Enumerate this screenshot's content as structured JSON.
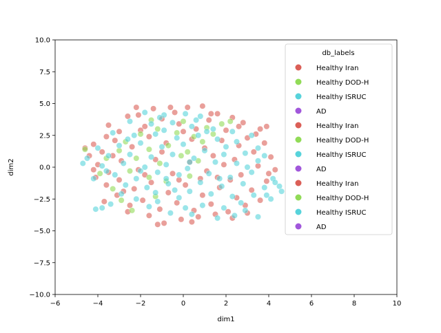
{
  "chart_data": {
    "type": "scatter",
    "title": "",
    "xlabel": "dim1",
    "ylabel": "dim2",
    "xlim": [
      -6,
      10
    ],
    "ylim": [
      -10,
      10
    ],
    "xticks": [
      "−6",
      "−4",
      "−2",
      "0",
      "2",
      "4",
      "6",
      "8",
      "10"
    ],
    "yticks": [
      "−10.0",
      "−7.5",
      "−5.0",
      "−2.5",
      "0.0",
      "2.5",
      "5.0",
      "7.5",
      "10.0"
    ],
    "grid": false,
    "legend": {
      "title": "db_labels",
      "placement": "top-right",
      "entries": [
        {
          "label": "Healthy Iran",
          "color": "#db5f57"
        },
        {
          "label": "Healthy DOD-H",
          "color": "#91db57"
        },
        {
          "label": "Healthy ISRUC",
          "color": "#57d3db"
        },
        {
          "label": "AD",
          "color": "#a157db"
        },
        {
          "label": "Healthy Iran",
          "color": "#db5f57"
        },
        {
          "label": "Healthy DOD-H",
          "color": "#91db57"
        },
        {
          "label": "Healthy ISRUC",
          "color": "#57d3db"
        },
        {
          "label": "AD",
          "color": "#a157db"
        },
        {
          "label": "Healthy Iran",
          "color": "#db5f57"
        },
        {
          "label": "Healthy DOD-H",
          "color": "#91db57"
        },
        {
          "label": "Healthy ISRUC",
          "color": "#57d3db"
        },
        {
          "label": "AD",
          "color": "#a157db"
        }
      ]
    },
    "series": [
      {
        "name": "Healthy Iran",
        "color": "#db5f57",
        "points": [
          [
            -2.2,
            4.7
          ],
          [
            -1.4,
            4.6
          ],
          [
            -0.6,
            4.7
          ],
          [
            0.2,
            4.7
          ],
          [
            0.9,
            4.8
          ],
          [
            1.6,
            4.2
          ],
          [
            2.3,
            3.9
          ],
          [
            -3.5,
            3.3
          ],
          [
            -3.0,
            2.8
          ],
          [
            -2.6,
            4.0
          ],
          [
            -1.8,
            3.2
          ],
          [
            -1.0,
            3.8
          ],
          [
            -0.2,
            3.4
          ],
          [
            0.6,
            3.0
          ],
          [
            1.2,
            3.7
          ],
          [
            2.0,
            2.9
          ],
          [
            2.8,
            3.5
          ],
          [
            3.4,
            2.6
          ],
          [
            3.9,
            3.2
          ],
          [
            -4.2,
            1.8
          ],
          [
            -3.8,
            1.2
          ],
          [
            -3.2,
            2.1
          ],
          [
            -2.4,
            1.6
          ],
          [
            -1.6,
            2.4
          ],
          [
            -0.8,
            1.9
          ],
          [
            0.4,
            2.2
          ],
          [
            1.0,
            1.5
          ],
          [
            1.8,
            2.1
          ],
          [
            2.6,
            1.7
          ],
          [
            3.3,
            1.2
          ],
          [
            3.8,
            1.9
          ],
          [
            4.1,
            0.8
          ],
          [
            -4.6,
            1.5
          ],
          [
            -4.0,
            0.2
          ],
          [
            -3.5,
            -0.4
          ],
          [
            -2.9,
            0.5
          ],
          [
            -2.1,
            -0.2
          ],
          [
            -1.3,
            0.6
          ],
          [
            -0.5,
            -0.5
          ],
          [
            0.3,
            0.4
          ],
          [
            1.1,
            -0.3
          ],
          [
            1.9,
            0.2
          ],
          [
            2.7,
            -0.6
          ],
          [
            3.5,
            0.1
          ],
          [
            4.3,
            -0.2
          ],
          [
            -4.1,
            -0.8
          ],
          [
            -3.6,
            -1.4
          ],
          [
            -3.0,
            -1.0
          ],
          [
            -2.3,
            -1.7
          ],
          [
            -1.5,
            -1.2
          ],
          [
            -0.7,
            -2.0
          ],
          [
            0.1,
            -1.4
          ],
          [
            0.9,
            -2.2
          ],
          [
            1.7,
            -1.6
          ],
          [
            2.5,
            -2.4
          ],
          [
            3.2,
            -1.8
          ],
          [
            3.9,
            -1.1
          ],
          [
            -3.7,
            -2.7
          ],
          [
            -3.1,
            -2.2
          ],
          [
            -2.5,
            -3.0
          ],
          [
            -1.9,
            -2.6
          ],
          [
            -1.1,
            -3.3
          ],
          [
            -0.3,
            -2.8
          ],
          [
            0.5,
            -3.4
          ],
          [
            1.3,
            -2.9
          ],
          [
            2.1,
            -3.5
          ],
          [
            2.9,
            -3.0
          ],
          [
            3.6,
            -2.6
          ],
          [
            -2.6,
            -3.5
          ],
          [
            -1.6,
            -3.8
          ],
          [
            -0.9,
            -4.4
          ],
          [
            -0.1,
            -4.1
          ],
          [
            0.7,
            -3.9
          ],
          [
            1.5,
            -3.7
          ],
          [
            2.3,
            -4.0
          ],
          [
            3.0,
            -3.6
          ],
          [
            -1.2,
            -4.5
          ],
          [
            0.4,
            -4.3
          ],
          [
            -2.1,
            4.1
          ],
          [
            -0.4,
            4.3
          ],
          [
            1.3,
            4.2
          ],
          [
            2.6,
            3.2
          ],
          [
            -3.6,
            2.4
          ],
          [
            3.6,
            3.0
          ],
          [
            -4.4,
            0.9
          ],
          [
            4.0,
            -0.5
          ],
          [
            -4.2,
            -0.2
          ],
          [
            -2.8,
            -1.9
          ],
          [
            2.2,
            -1.0
          ],
          [
            1.4,
            0.9
          ],
          [
            -1.0,
            1.2
          ],
          [
            0.0,
            2.8
          ],
          [
            -2.0,
            2.9
          ],
          [
            3.0,
            2.3
          ],
          [
            -3.3,
            0.9
          ],
          [
            -0.2,
            -1.0
          ],
          [
            1.6,
            -0.8
          ],
          [
            -1.8,
            -0.6
          ],
          [
            2.4,
            0.6
          ],
          [
            0.8,
            -0.9
          ]
        ]
      },
      {
        "name": "Healthy DOD-H",
        "color": "#91db57",
        "points": [
          [
            -2.0,
            2.6
          ],
          [
            -1.2,
            3.0
          ],
          [
            -0.3,
            2.7
          ],
          [
            0.5,
            2.4
          ],
          [
            1.1,
            3.1
          ],
          [
            1.8,
            3.4
          ],
          [
            -2.7,
            2.0
          ],
          [
            -1.6,
            1.4
          ],
          [
            -0.7,
            1.7
          ],
          [
            0.2,
            1.2
          ],
          [
            0.9,
            2.0
          ],
          [
            -3.0,
            1.3
          ],
          [
            -2.2,
            0.7
          ],
          [
            -1.1,
            0.3
          ],
          [
            -0.1,
            0.9
          ],
          [
            0.7,
            0.5
          ],
          [
            -3.6,
            0.7
          ],
          [
            -2.5,
            -0.3
          ],
          [
            -1.6,
            -0.8
          ],
          [
            -0.8,
            -1.1
          ],
          [
            0.3,
            -0.7
          ],
          [
            -3.3,
            -1.7
          ],
          [
            -2.4,
            -3.4
          ],
          [
            -1.3,
            -2.3
          ],
          [
            0.0,
            3.6
          ],
          [
            -1.5,
            3.7
          ],
          [
            -4.6,
            1.4
          ],
          [
            1.4,
            2.6
          ],
          [
            -3.9,
            -0.5
          ],
          [
            2.2,
            3.6
          ],
          [
            -2.9,
            -2.6
          ]
        ]
      },
      {
        "name": "Healthy ISRUC",
        "color": "#57d3db",
        "points": [
          [
            -1.8,
            4.3
          ],
          [
            -0.9,
            4.1
          ],
          [
            0.1,
            4.2
          ],
          [
            0.8,
            4.0
          ],
          [
            -2.5,
            3.6
          ],
          [
            -1.5,
            3.4
          ],
          [
            -0.5,
            3.5
          ],
          [
            0.4,
            3.2
          ],
          [
            1.4,
            3.0
          ],
          [
            2.3,
            2.8
          ],
          [
            3.2,
            2.5
          ],
          [
            -3.3,
            2.7
          ],
          [
            -2.3,
            2.5
          ],
          [
            -1.3,
            2.6
          ],
          [
            -0.3,
            2.3
          ],
          [
            0.7,
            2.5
          ],
          [
            1.6,
            2.2
          ],
          [
            2.5,
            2.0
          ],
          [
            3.5,
            1.5
          ],
          [
            -4.0,
            1.5
          ],
          [
            -3.0,
            1.7
          ],
          [
            -2.0,
            1.9
          ],
          [
            -1.0,
            1.6
          ],
          [
            0.0,
            1.8
          ],
          [
            1.0,
            1.3
          ],
          [
            1.9,
            1.0
          ],
          [
            2.9,
            1.1
          ],
          [
            3.8,
            0.9
          ],
          [
            -4.5,
            0.7
          ],
          [
            -3.5,
            0.9
          ],
          [
            -2.5,
            1.0
          ],
          [
            -1.5,
            0.8
          ],
          [
            -0.5,
            1.0
          ],
          [
            0.5,
            0.7
          ],
          [
            1.5,
            0.4
          ],
          [
            2.5,
            0.3
          ],
          [
            3.5,
            0.5
          ],
          [
            -4.7,
            0.3
          ],
          [
            -3.8,
            0.1
          ],
          [
            -2.8,
            0.3
          ],
          [
            -1.8,
            0.0
          ],
          [
            -0.8,
            0.2
          ],
          [
            0.2,
            -0.1
          ],
          [
            1.2,
            -0.5
          ],
          [
            2.2,
            -0.8
          ],
          [
            3.2,
            -0.4
          ],
          [
            4.2,
            -0.9
          ],
          [
            -3.2,
            -0.6
          ],
          [
            -2.2,
            -0.9
          ],
          [
            -1.2,
            -0.4
          ],
          [
            -0.2,
            -0.6
          ],
          [
            0.8,
            -1.2
          ],
          [
            1.8,
            -1.5
          ],
          [
            2.8,
            -1.3
          ],
          [
            3.8,
            -1.6
          ],
          [
            4.5,
            -1.5
          ],
          [
            -2.7,
            -1.4
          ],
          [
            -1.7,
            -1.6
          ],
          [
            -0.7,
            -1.3
          ],
          [
            0.3,
            -1.9
          ],
          [
            1.3,
            -2.1
          ],
          [
            2.3,
            -2.3
          ],
          [
            3.3,
            -2.2
          ],
          [
            4.1,
            -2.5
          ],
          [
            4.6,
            -1.9
          ],
          [
            -3.8,
            -3.2
          ],
          [
            -3.4,
            -2.9
          ],
          [
            -4.1,
            -3.3
          ],
          [
            -2.2,
            -2.5
          ],
          [
            -1.2,
            -2.7
          ],
          [
            -0.2,
            -2.4
          ],
          [
            0.9,
            -3.0
          ],
          [
            1.9,
            -3.2
          ],
          [
            2.9,
            -3.4
          ],
          [
            3.5,
            -3.9
          ],
          [
            -0.6,
            -3.6
          ],
          [
            0.4,
            -3.7
          ],
          [
            1.6,
            -4.0
          ],
          [
            2.4,
            -3.8
          ],
          [
            -1.6,
            -3.1
          ],
          [
            -0.8,
            -0.9
          ],
          [
            -2.6,
            2.2
          ],
          [
            1.1,
            2.8
          ],
          [
            -0.9,
            2.9
          ],
          [
            0.3,
            0.4
          ],
          [
            -1.3,
            -2.0
          ],
          [
            2.7,
            -2.8
          ],
          [
            3.9,
            -2.2
          ],
          [
            4.3,
            -1.2
          ],
          [
            -3.6,
            -0.3
          ],
          [
            -1.1,
            3.9
          ],
          [
            0.6,
            3.7
          ],
          [
            2.0,
            1.6
          ],
          [
            -2.0,
            -0.3
          ],
          [
            1.7,
            -0.9
          ],
          [
            -0.4,
            -1.8
          ],
          [
            3.0,
            0.0
          ],
          [
            -2.9,
            -2.1
          ],
          [
            0.1,
            -3.2
          ],
          [
            -4.2,
            -0.9
          ]
        ]
      },
      {
        "name": "AD",
        "color": "#a157db",
        "points": []
      }
    ]
  }
}
